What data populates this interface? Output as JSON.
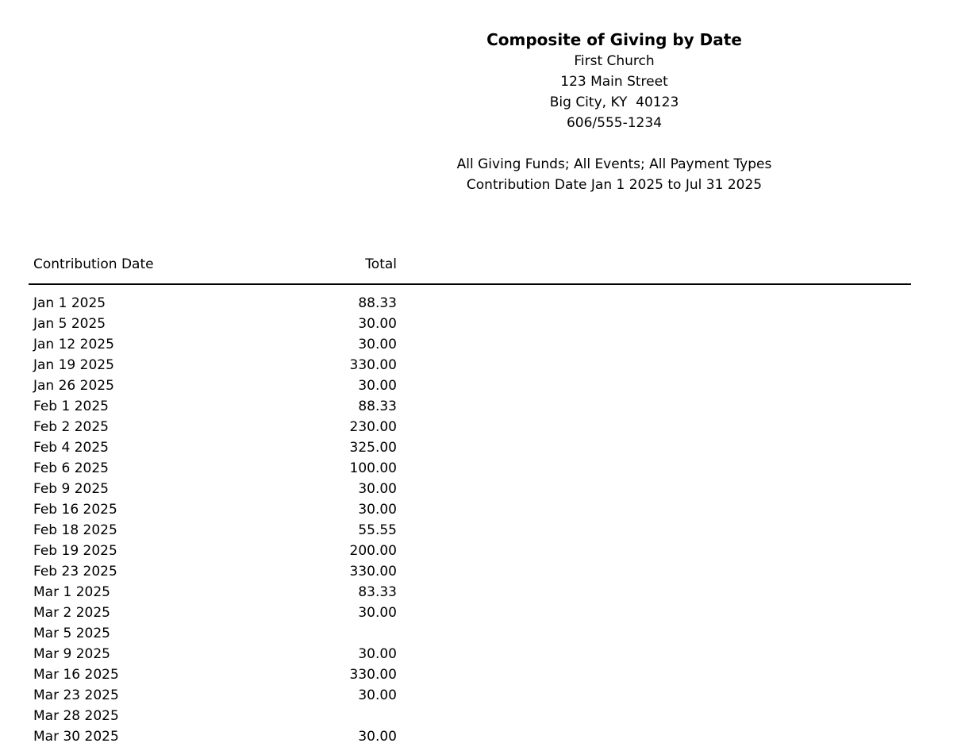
{
  "colors": {
    "background": "#ffffff",
    "text": "#000000",
    "rule": "#000000"
  },
  "report_header": {
    "title": "Composite of Giving by Date",
    "organization": "First Church",
    "address_street": "123 Main Street",
    "address_city": "Big City, KY  40123",
    "phone": "606/555-1234"
  },
  "filters": {
    "line1": "All Giving Funds; All Events; All Payment Types",
    "line2": "Contribution Date Jan 1 2025 to Jul 31 2025"
  },
  "table": {
    "columns": {
      "date": "Contribution Date",
      "total": "Total"
    },
    "rows": [
      {
        "date": "Jan 1 2025",
        "total": "88.33"
      },
      {
        "date": "Jan 5 2025",
        "total": "30.00"
      },
      {
        "date": "Jan 12 2025",
        "total": "30.00"
      },
      {
        "date": "Jan 19 2025",
        "total": "330.00"
      },
      {
        "date": "Jan 26 2025",
        "total": "30.00"
      },
      {
        "date": "Feb 1 2025",
        "total": "88.33"
      },
      {
        "date": "Feb 2 2025",
        "total": "230.00"
      },
      {
        "date": "Feb 4 2025",
        "total": "325.00"
      },
      {
        "date": "Feb 6 2025",
        "total": "100.00"
      },
      {
        "date": "Feb 9 2025",
        "total": "30.00"
      },
      {
        "date": "Feb 16 2025",
        "total": "30.00"
      },
      {
        "date": "Feb 18 2025",
        "total": "55.55"
      },
      {
        "date": "Feb 19 2025",
        "total": "200.00"
      },
      {
        "date": "Feb 23 2025",
        "total": "330.00"
      },
      {
        "date": "Mar 1 2025",
        "total": "83.33"
      },
      {
        "date": "Mar 2 2025",
        "total": "30.00"
      },
      {
        "date": "Mar 5 2025",
        "total": ""
      },
      {
        "date": "Mar 9 2025",
        "total": "30.00"
      },
      {
        "date": "Mar 16 2025",
        "total": "330.00"
      },
      {
        "date": "Mar 23 2025",
        "total": "30.00"
      },
      {
        "date": "Mar 28 2025",
        "total": ""
      },
      {
        "date": "Mar 30 2025",
        "total": "30.00"
      }
    ]
  }
}
